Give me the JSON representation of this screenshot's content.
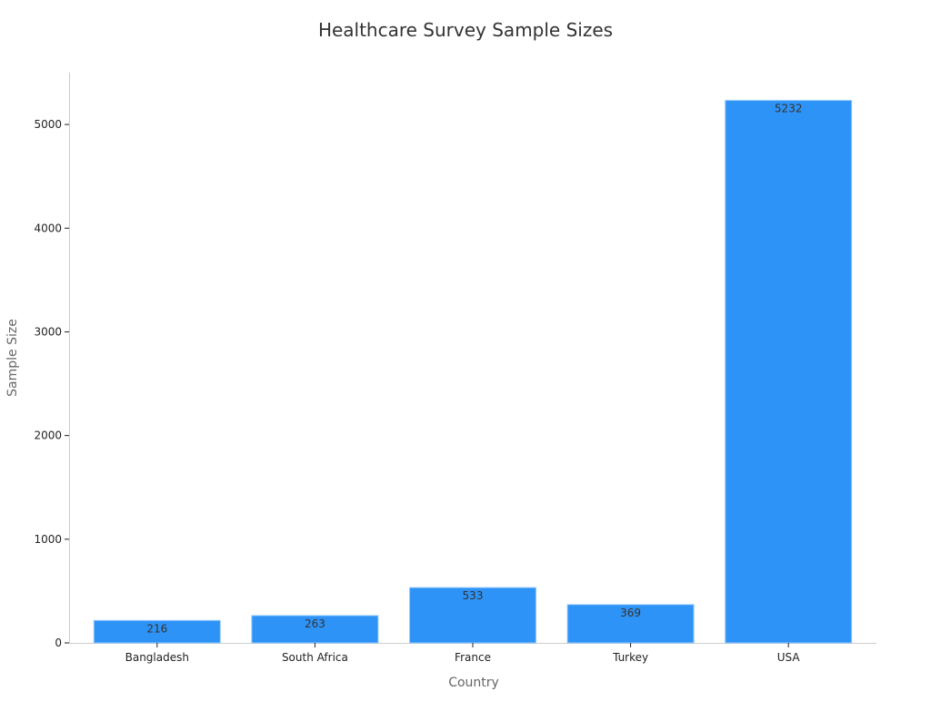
{
  "chart_data": {
    "type": "bar",
    "title": "Healthcare Survey Sample Sizes",
    "xlabel": "Country",
    "ylabel": "Sample Size",
    "categories": [
      "Bangladesh",
      "South Africa",
      "France",
      "Turkey",
      "USA"
    ],
    "values": [
      216,
      263,
      533,
      369,
      5232
    ],
    "data_labels": [
      "216",
      "263",
      "533",
      "369",
      "5232"
    ],
    "ylim": [
      0,
      5500
    ],
    "yticks": [
      0,
      1000,
      2000,
      3000,
      4000,
      5000
    ],
    "ytick_labels": [
      "0",
      "1000",
      "2000",
      "3000",
      "4000",
      "5000"
    ],
    "grid": false,
    "legend": "none",
    "colors": {
      "bar": "#2e93f7",
      "bar_edge": "#8cc3fb",
      "axis": "#cccccc",
      "title_text": "#333333",
      "label_text": "#666666",
      "tick_text": "#222222",
      "data_label_text": "#333333"
    }
  }
}
